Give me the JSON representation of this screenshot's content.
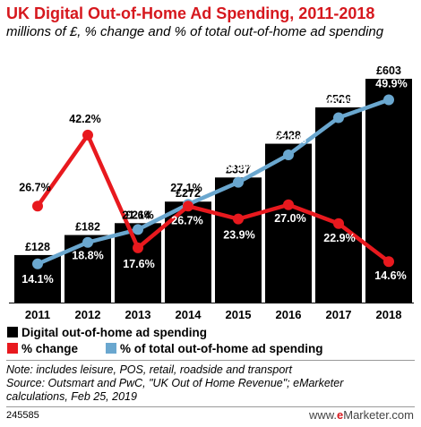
{
  "chart_data": {
    "type": "bar",
    "title": "UK Digital Out-of-Home Ad Spending, 2011-2018",
    "subtitle": "millions of £, % change and % of total out-of-home ad spending",
    "categories": [
      "2011",
      "2012",
      "2013",
      "2014",
      "2015",
      "2016",
      "2017",
      "2018"
    ],
    "series": [
      {
        "name": "Digital out-of-home ad spending",
        "type": "bar",
        "color": "#000000",
        "values": [
          128,
          182,
          214,
          272,
          337,
          428,
          526,
          603
        ],
        "labels": [
          "£128",
          "£182",
          "£214",
          "£272",
          "£337",
          "£428",
          "£526",
          "£603"
        ]
      },
      {
        "name": "% change",
        "type": "line",
        "color": "#e8191e",
        "values": [
          26.7,
          42.2,
          17.6,
          26.7,
          23.9,
          27.0,
          22.9,
          14.6
        ],
        "labels": [
          "26.7%",
          "42.2%",
          "17.6%",
          "26.7%",
          "23.9%",
          "27.0%",
          "22.9%",
          "14.6%"
        ]
      },
      {
        "name": "% of total out-of-home ad spending",
        "type": "line",
        "color": "#6aa7cf",
        "values": [
          14.1,
          18.8,
          21.6,
          27.1,
          31.9,
          37.9,
          46.0,
          49.9
        ],
        "labels": [
          "14.1%",
          "18.8%",
          "21.6%",
          "27.1%",
          "31.9%",
          "37.9%",
          "46.0%",
          "49.9%"
        ]
      }
    ],
    "legend_placement": "bottom",
    "grid": false
  },
  "notes": {
    "line1": "Note: includes leisure, POS, retail, roadside and transport",
    "line2": "Source: Outsmart and PwC, \"UK Out of Home Revenue\"; eMarketer",
    "line3": "calculations, Feb 25, 2019"
  },
  "footer": {
    "id": "245585",
    "brand_prefix": "www.",
    "brand_e": "e",
    "brand_suffix": "Marketer.com"
  }
}
